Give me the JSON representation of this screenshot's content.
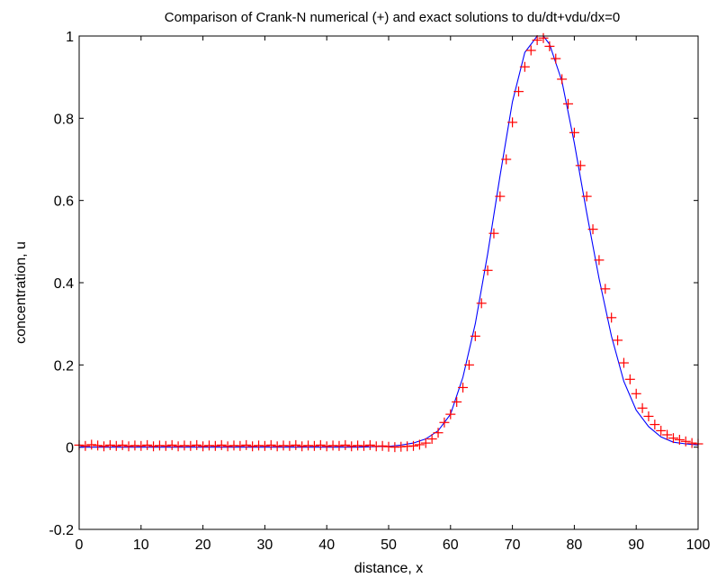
{
  "chart_data": {
    "type": "line",
    "title": "Comparison of Crank-N numerical (+) and exact solutions to du/dt+vdu/dx=0",
    "xlabel": "distance, x",
    "ylabel": "concentration, u",
    "xlim": [
      0,
      100
    ],
    "ylim": [
      -0.2,
      1
    ],
    "xticks": [
      "0",
      "10",
      "20",
      "30",
      "40",
      "50",
      "60",
      "70",
      "80",
      "90",
      "100"
    ],
    "yticks": [
      "-0.2",
      "0",
      "0.2",
      "0.4",
      "0.6",
      "0.8",
      "1"
    ],
    "grid": false,
    "legend": "none",
    "colors": {
      "exact": "#0000ff",
      "numerical": "#ff0000",
      "axes": "#000000"
    },
    "series": [
      {
        "marker": "line",
        "x": [
          0,
          45,
          50,
          52,
          54,
          56,
          58,
          60,
          62,
          64,
          66,
          68,
          70,
          72,
          74,
          75,
          76,
          78,
          80,
          82,
          84,
          86,
          88,
          90,
          92,
          94,
          96,
          98,
          100
        ],
        "y": [
          0,
          0,
          0.002,
          0.005,
          0.01,
          0.02,
          0.04,
          0.08,
          0.17,
          0.3,
          0.47,
          0.66,
          0.84,
          0.96,
          1.0,
          1.0,
          0.98,
          0.89,
          0.74,
          0.57,
          0.41,
          0.27,
          0.16,
          0.09,
          0.05,
          0.025,
          0.012,
          0.008,
          0.005
        ]
      },
      {
        "marker": "+",
        "x": [
          0,
          1,
          2,
          3,
          4,
          5,
          6,
          7,
          8,
          9,
          10,
          11,
          12,
          13,
          14,
          15,
          16,
          17,
          18,
          19,
          20,
          21,
          22,
          23,
          24,
          25,
          26,
          27,
          28,
          29,
          30,
          31,
          32,
          33,
          34,
          35,
          36,
          37,
          38,
          39,
          40,
          41,
          42,
          43,
          44,
          45,
          46,
          47,
          48,
          49,
          50,
          51,
          52,
          53,
          54,
          55,
          56,
          57,
          58,
          59,
          60,
          61,
          62,
          63,
          64,
          65,
          66,
          67,
          68,
          69,
          70,
          71,
          72,
          73,
          74,
          75,
          76,
          77,
          78,
          79,
          80,
          81,
          82,
          83,
          84,
          85,
          86,
          87,
          88,
          89,
          90,
          91,
          92,
          93,
          94,
          95,
          96,
          97,
          98,
          99,
          100
        ],
        "y": [
          0.005,
          0.003,
          0.006,
          0.004,
          0.002,
          0.005,
          0.003,
          0.005,
          0.002,
          0.004,
          0.003,
          0.005,
          0.002,
          0.004,
          0.003,
          0.005,
          0.002,
          0.004,
          0.003,
          0.005,
          0.002,
          0.004,
          0.003,
          0.005,
          0.002,
          0.004,
          0.003,
          0.005,
          0.002,
          0.004,
          0.003,
          0.005,
          0.002,
          0.004,
          0.003,
          0.005,
          0.002,
          0.004,
          0.003,
          0.005,
          0.002,
          0.004,
          0.003,
          0.005,
          0.002,
          0.004,
          0.003,
          0.005,
          0.002,
          0.003,
          0.001,
          0.0,
          0.001,
          0.002,
          0.003,
          0.006,
          0.01,
          0.02,
          0.035,
          0.06,
          0.08,
          0.11,
          0.145,
          0.2,
          0.27,
          0.35,
          0.43,
          0.52,
          0.61,
          0.7,
          0.79,
          0.865,
          0.925,
          0.965,
          0.99,
          0.995,
          0.975,
          0.945,
          0.895,
          0.835,
          0.765,
          0.685,
          0.61,
          0.53,
          0.455,
          0.385,
          0.315,
          0.26,
          0.205,
          0.165,
          0.13,
          0.095,
          0.075,
          0.055,
          0.04,
          0.03,
          0.022,
          0.018,
          0.014,
          0.01,
          0.008
        ]
      }
    ]
  }
}
